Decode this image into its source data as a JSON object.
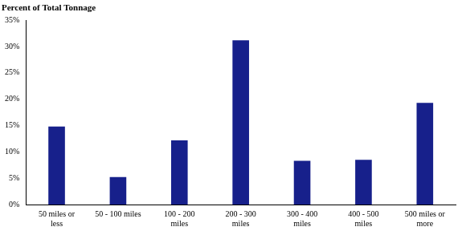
{
  "chart_data": {
    "type": "bar",
    "y_label": "Percent of Total Tonnage",
    "categories": [
      "50 miles or less",
      "50 - 100 miles",
      "100 - 200 miles",
      "200 - 300 miles",
      "300 - 400 miles",
      "400 - 500 miles",
      "500 miles or more"
    ],
    "values": [
      14.8,
      5.2,
      12.2,
      31.2,
      8.3,
      8.5,
      19.3
    ],
    "color": "#17208b",
    "ylim": [
      0,
      35
    ],
    "yticks": [
      {
        "value": 0,
        "label": "0%"
      },
      {
        "value": 5,
        "label": "5%"
      },
      {
        "value": 10,
        "label": "10%"
      },
      {
        "value": 15,
        "label": "15%"
      },
      {
        "value": 20,
        "label": "20%"
      },
      {
        "value": 25,
        "label": "25%"
      },
      {
        "value": 30,
        "label": "30%"
      },
      {
        "value": 35,
        "label": "35%"
      }
    ],
    "grid": false
  }
}
